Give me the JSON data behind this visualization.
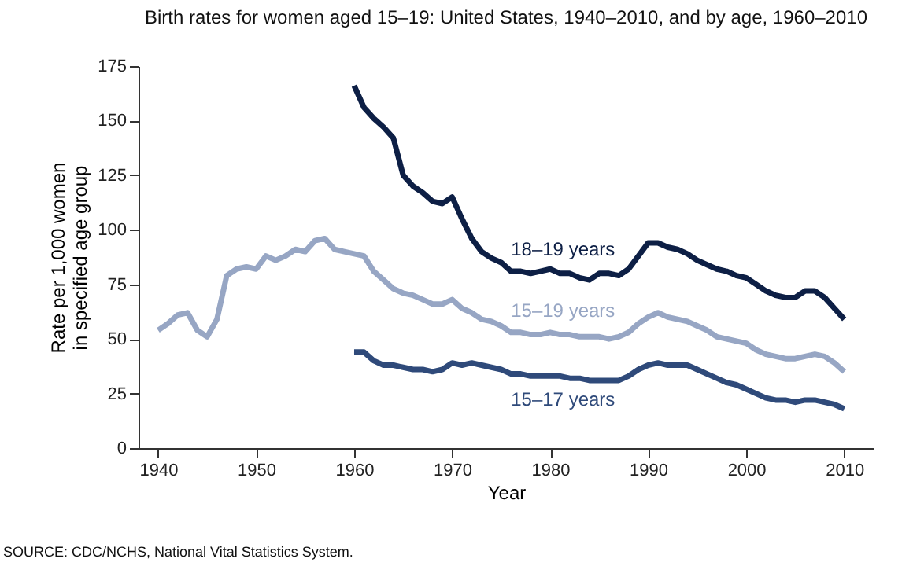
{
  "chart_data": {
    "type": "line",
    "title": "Birth rates for women aged 15–19: United States, 1940–2010, and by age, 1960–2010",
    "xlabel": "Year",
    "ylabel": "Rate per 1,000 women\nin specified age group",
    "xlim": [
      1938,
      2013
    ],
    "xticks": [
      1940,
      1950,
      1960,
      1970,
      1980,
      1990,
      2000,
      2010
    ],
    "ylim": [
      0,
      175
    ],
    "yticks": [
      0,
      25,
      50,
      75,
      100,
      125,
      150,
      175
    ],
    "grid": false,
    "marker": "none",
    "line_style": "solid",
    "annotations": [
      "SOURCE: CDC/NCHS, National Vital Statistics System."
    ],
    "series": [
      {
        "name": "18–19 years",
        "color": "#0d1f45",
        "x": [
          1960,
          1961,
          1962,
          1963,
          1964,
          1965,
          1966,
          1967,
          1968,
          1969,
          1970,
          1971,
          1972,
          1973,
          1974,
          1975,
          1976,
          1977,
          1978,
          1979,
          1980,
          1981,
          1982,
          1983,
          1984,
          1985,
          1986,
          1987,
          1988,
          1989,
          1990,
          1991,
          1992,
          1993,
          1994,
          1995,
          1996,
          1997,
          1998,
          1999,
          2000,
          2001,
          2002,
          2003,
          2004,
          2005,
          2006,
          2007,
          2008,
          2009,
          2010
        ],
        "values": [
          166,
          156,
          151,
          147,
          142,
          125,
          120,
          117,
          113,
          112,
          115,
          105,
          96,
          90,
          87,
          85,
          81,
          81,
          80,
          81,
          82,
          80,
          80,
          78,
          77,
          80,
          80,
          79,
          82,
          88,
          94,
          94,
          92,
          91,
          89,
          86,
          84,
          82,
          81,
          79,
          78,
          75,
          72,
          70,
          69,
          69,
          72,
          72,
          69,
          64,
          59
        ]
      },
      {
        "name": "15–19 years",
        "color": "#97a6c4",
        "x": [
          1940,
          1941,
          1942,
          1943,
          1944,
          1945,
          1946,
          1947,
          1948,
          1949,
          1950,
          1951,
          1952,
          1953,
          1954,
          1955,
          1956,
          1957,
          1958,
          1959,
          1960,
          1961,
          1962,
          1963,
          1964,
          1965,
          1966,
          1967,
          1968,
          1969,
          1970,
          1971,
          1972,
          1973,
          1974,
          1975,
          1976,
          1977,
          1978,
          1979,
          1980,
          1981,
          1982,
          1983,
          1984,
          1985,
          1986,
          1987,
          1988,
          1989,
          1990,
          1991,
          1992,
          1993,
          1994,
          1995,
          1996,
          1997,
          1998,
          1999,
          2000,
          2001,
          2002,
          2003,
          2004,
          2005,
          2006,
          2007,
          2008,
          2009,
          2010
        ],
        "values": [
          54,
          57,
          61,
          62,
          54,
          51,
          59,
          79,
          82,
          83,
          82,
          88,
          86,
          88,
          91,
          90,
          95,
          96,
          91,
          90,
          89,
          88,
          81,
          77,
          73,
          71,
          70,
          68,
          66,
          66,
          68,
          64,
          62,
          59,
          58,
          56,
          53,
          53,
          52,
          52,
          53,
          52,
          52,
          51,
          51,
          51,
          50,
          51,
          53,
          57,
          60,
          62,
          60,
          59,
          58,
          56,
          54,
          51,
          50,
          49,
          48,
          45,
          43,
          42,
          41,
          41,
          42,
          43,
          42,
          39,
          35
        ]
      },
      {
        "name": "15–17 years",
        "color": "#2f4a7a",
        "x": [
          1960,
          1961,
          1962,
          1963,
          1964,
          1965,
          1966,
          1967,
          1968,
          1969,
          1970,
          1971,
          1972,
          1973,
          1974,
          1975,
          1976,
          1977,
          1978,
          1979,
          1980,
          1981,
          1982,
          1983,
          1984,
          1985,
          1986,
          1987,
          1988,
          1989,
          1990,
          1991,
          1992,
          1993,
          1994,
          1995,
          1996,
          1997,
          1998,
          1999,
          2000,
          2001,
          2002,
          2003,
          2004,
          2005,
          2006,
          2007,
          2008,
          2009,
          2010
        ],
        "values": [
          44,
          44,
          40,
          38,
          38,
          37,
          36,
          36,
          35,
          36,
          39,
          38,
          39,
          38,
          37,
          36,
          34,
          34,
          33,
          33,
          33,
          33,
          32,
          32,
          31,
          31,
          31,
          31,
          33,
          36,
          38,
          39,
          38,
          38,
          38,
          36,
          34,
          32,
          30,
          29,
          27,
          25,
          23,
          22,
          22,
          21,
          22,
          22,
          21,
          20,
          18
        ]
      }
    ]
  }
}
